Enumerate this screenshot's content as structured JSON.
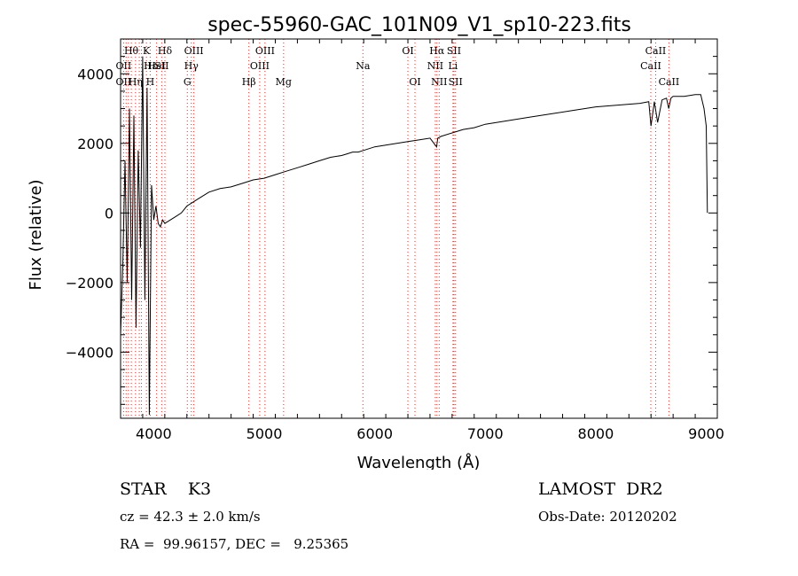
{
  "chart_data": {
    "type": "line",
    "title": "spec-55960-GAC_101N09_V1_sp10-223.fits",
    "xlabel": "Wavelength (Å)",
    "ylabel": "Flux (relative)",
    "xlim": [
      3700,
      9100
    ],
    "ylim": [
      -5900,
      5000
    ],
    "xticks": [
      4000,
      5000,
      6000,
      7000,
      8000,
      9000
    ],
    "yticks": [
      -4000,
      -2000,
      0,
      2000,
      4000
    ],
    "grid": false,
    "series": [
      {
        "x": [
          3700,
          3720,
          3740,
          3760,
          3780,
          3800,
          3820,
          3840,
          3860,
          3880,
          3900,
          3920,
          3940,
          3960,
          3980,
          4000,
          4020,
          4040,
          4060,
          4080,
          4100,
          4150,
          4200,
          4250,
          4300,
          4350,
          4400,
          4500,
          4600,
          4700,
          4800,
          4900,
          5000,
          5100,
          5200,
          5300,
          5400,
          5500,
          5600,
          5700,
          5750,
          5800,
          5850,
          5900,
          6000,
          6100,
          6200,
          6300,
          6400,
          6500,
          6560,
          6570,
          6600,
          6700,
          6800,
          6900,
          7000,
          7200,
          7400,
          7600,
          7800,
          8000,
          8200,
          8400,
          8480,
          8500,
          8530,
          8560,
          8600,
          8640,
          8660,
          8680,
          8700,
          8800,
          8900,
          8950,
          8980,
          9000,
          9010
        ],
        "y": [
          -3500,
          -1500,
          1500,
          -2000,
          3000,
          -2500,
          2800,
          -3300,
          1800,
          -1000,
          4500,
          -2500,
          3600,
          -5800,
          800,
          -200,
          200,
          -300,
          -400,
          -200,
          -300,
          -200,
          -100,
          0,
          200,
          300,
          400,
          600,
          700,
          750,
          850,
          950,
          1000,
          1100,
          1200,
          1300,
          1400,
          1500,
          1600,
          1650,
          1700,
          1750,
          1750,
          1800,
          1900,
          1950,
          2000,
          2050,
          2100,
          2150,
          1900,
          2150,
          2200,
          2300,
          2400,
          2450,
          2550,
          2650,
          2750,
          2850,
          2950,
          3050,
          3100,
          3150,
          3200,
          2500,
          3200,
          2600,
          3250,
          3300,
          3000,
          3300,
          3350,
          3350,
          3400,
          3400,
          3000,
          2500,
          0
        ]
      }
    ],
    "line_labels": {
      "top": [
        {
          "text": "Hδ",
          "x": 4101
        },
        {
          "text": "OIII",
          "x": 4363
        },
        {
          "text": "OIII",
          "x": 5007
        },
        {
          "text": "OI",
          "x": 6300
        },
        {
          "text": "Hα",
          "x": 6563
        },
        {
          "text": "SII",
          "x": 6717
        },
        {
          "text": "CaII",
          "x": 8542
        }
      ],
      "middle": [
        {
          "text": "Hε",
          "x": 3970
        },
        {
          "text": "HeI",
          "x": 4026
        },
        {
          "text": "SII",
          "x": 4072
        },
        {
          "text": "Hγ",
          "x": 4340
        },
        {
          "text": "OIII",
          "x": 4959
        },
        {
          "text": "Na",
          "x": 5893
        },
        {
          "text": "NII",
          "x": 6548
        },
        {
          "text": "Li",
          "x": 6708
        },
        {
          "text": "CaII",
          "x": 8498
        }
      ],
      "bottom": [
        {
          "text": "H",
          "x": 3968
        },
        {
          "text": "G",
          "x": 4304
        },
        {
          "text": "Hβ",
          "x": 4861
        },
        {
          "text": "Mg",
          "x": 5175
        },
        {
          "text": "OI",
          "x": 6364
        },
        {
          "text": "NII",
          "x": 6583
        },
        {
          "text": "SII",
          "x": 6731
        },
        {
          "text": "CaII",
          "x": 8662
        }
      ]
    },
    "extra_labels": [
      {
        "text": "Hθ",
        "x": 3797,
        "row": 0
      },
      {
        "text": "K",
        "x": 3934,
        "row": 0
      },
      {
        "text": "OII",
        "x": 3727,
        "row": 1
      },
      {
        "text": "Hη",
        "x": 3835,
        "row": 2
      },
      {
        "text": "OII",
        "x": 3727,
        "row": 2
      }
    ],
    "line_marks": [
      3727,
      3750,
      3771,
      3797,
      3835,
      3869,
      3889,
      3934,
      3968,
      4026,
      4072,
      4101,
      4304,
      4340,
      4363,
      4861,
      4959,
      5007,
      5175,
      5893,
      6300,
      6364,
      6548,
      6563,
      6583,
      6708,
      6717,
      6731,
      8498,
      8542,
      8662
    ]
  },
  "info": {
    "object": "STAR    K3",
    "survey": "LAMOST  DR2",
    "cz": "cz = 42.3 ± 2.0 km/s",
    "obs_date": "Obs-Date: 20120202",
    "coords": "RA =  99.96157, DEC =   9.25365"
  }
}
